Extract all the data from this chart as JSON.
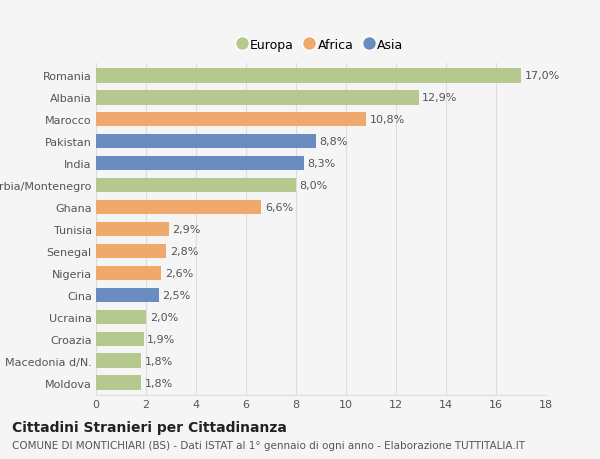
{
  "countries": [
    "Romania",
    "Albania",
    "Marocco",
    "Pakistan",
    "India",
    "Serbia/Montenegro",
    "Ghana",
    "Tunisia",
    "Senegal",
    "Nigeria",
    "Cina",
    "Ucraina",
    "Croazia",
    "Macedonia d/N.",
    "Moldova"
  ],
  "values": [
    17.0,
    12.9,
    10.8,
    8.8,
    8.3,
    8.0,
    6.6,
    2.9,
    2.8,
    2.6,
    2.5,
    2.0,
    1.9,
    1.8,
    1.8
  ],
  "labels": [
    "17,0%",
    "12,9%",
    "10,8%",
    "8,8%",
    "8,3%",
    "8,0%",
    "6,6%",
    "2,9%",
    "2,8%",
    "2,6%",
    "2,5%",
    "2,0%",
    "1,9%",
    "1,8%",
    "1,8%"
  ],
  "continents": [
    "Europa",
    "Europa",
    "Africa",
    "Asia",
    "Asia",
    "Europa",
    "Africa",
    "Africa",
    "Africa",
    "Africa",
    "Asia",
    "Europa",
    "Europa",
    "Europa",
    "Europa"
  ],
  "colors": {
    "Europa": "#b5c98e",
    "Africa": "#f0a96c",
    "Asia": "#6b8cbf"
  },
  "legend_labels": [
    "Europa",
    "Africa",
    "Asia"
  ],
  "title": "Cittadini Stranieri per Cittadinanza",
  "subtitle": "COMUNE DI MONTICHIARI (BS) - Dati ISTAT al 1° gennaio di ogni anno - Elaborazione TUTTITALIA.IT",
  "xlim": [
    0,
    18
  ],
  "xticks": [
    0,
    2,
    4,
    6,
    8,
    10,
    12,
    14,
    16,
    18
  ],
  "background_color": "#f5f5f5",
  "grid_color": "#dddddd",
  "bar_height": 0.65,
  "title_fontsize": 10,
  "subtitle_fontsize": 7.5,
  "label_fontsize": 8,
  "tick_fontsize": 8,
  "legend_fontsize": 9
}
